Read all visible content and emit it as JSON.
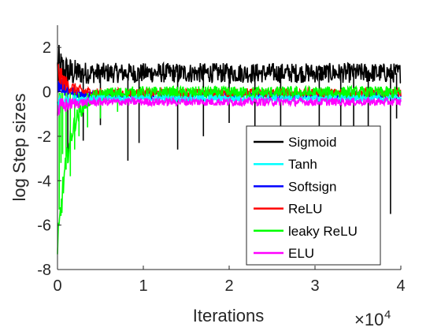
{
  "chart_data": {
    "type": "line",
    "xlabel": "Iterations",
    "ylabel": "log Step sizes",
    "x_exponent_label": "×10",
    "x_exponent_power": "4",
    "xlim": [
      0,
      4
    ],
    "ylim": [
      -8,
      3
    ],
    "x_ticks": [
      0,
      1,
      2,
      3,
      4
    ],
    "y_ticks": [
      -8,
      -6,
      -4,
      -2,
      0,
      2
    ],
    "x_tick_labels": [
      "0",
      "1",
      "2",
      "3",
      "4"
    ],
    "y_tick_labels": [
      "-8",
      "-6",
      "-4",
      "-2",
      "0",
      "2"
    ],
    "grid": false,
    "legend_position": "bottom-right",
    "series": [
      {
        "name": "Sigmoid",
        "color": "#000000",
        "center": 0.85,
        "noise": 0.45,
        "start": 0.9,
        "spikes": [
          [
            0.82,
            -3.1
          ],
          [
            0.95,
            -2.3
          ],
          [
            1.4,
            -2.6
          ],
          [
            1.7,
            -2.0
          ],
          [
            2.3,
            -2.1
          ],
          [
            2.6,
            -1.8
          ],
          [
            3.05,
            -2.2
          ],
          [
            3.3,
            -1.6
          ],
          [
            3.62,
            -2.4
          ],
          [
            3.88,
            -5.5
          ],
          [
            3.95,
            -1.2
          ],
          [
            0.3,
            -2.2
          ],
          [
            0.5,
            -1.5
          ],
          [
            0.12,
            -2.8
          ],
          [
            2.0,
            -1.4
          ],
          [
            3.45,
            -1.9
          ]
        ]
      },
      {
        "name": "Tanh",
        "color": "#00ffff",
        "center": -0.3,
        "noise": 0.15,
        "start": -0.5,
        "spikes": []
      },
      {
        "name": "Softsign",
        "color": "#0000ff",
        "center": -0.15,
        "noise": 0.18,
        "start": 0.5,
        "spikes": []
      },
      {
        "name": "ReLU",
        "color": "#ff0000",
        "center": -0.05,
        "noise": 0.2,
        "start": 0.9,
        "spikes": []
      },
      {
        "name": "leaky ReLU",
        "color": "#00ff00",
        "center": -0.05,
        "noise": 0.3,
        "start": -7.4,
        "spikes": [
          [
            0.02,
            -5.3
          ],
          [
            0.04,
            -3.2
          ],
          [
            0.06,
            -2.8
          ],
          [
            0.1,
            -3.5
          ],
          [
            0.15,
            -3.8
          ],
          [
            0.2,
            -2.6
          ],
          [
            0.25,
            -2.0
          ],
          [
            0.35,
            -1.6
          ],
          [
            0.5,
            -1.2
          ],
          [
            0.7,
            -0.9
          ]
        ]
      },
      {
        "name": "ELU",
        "color": "#ff00ff",
        "center": -0.45,
        "noise": 0.18,
        "start": -0.8,
        "spikes": []
      }
    ]
  }
}
